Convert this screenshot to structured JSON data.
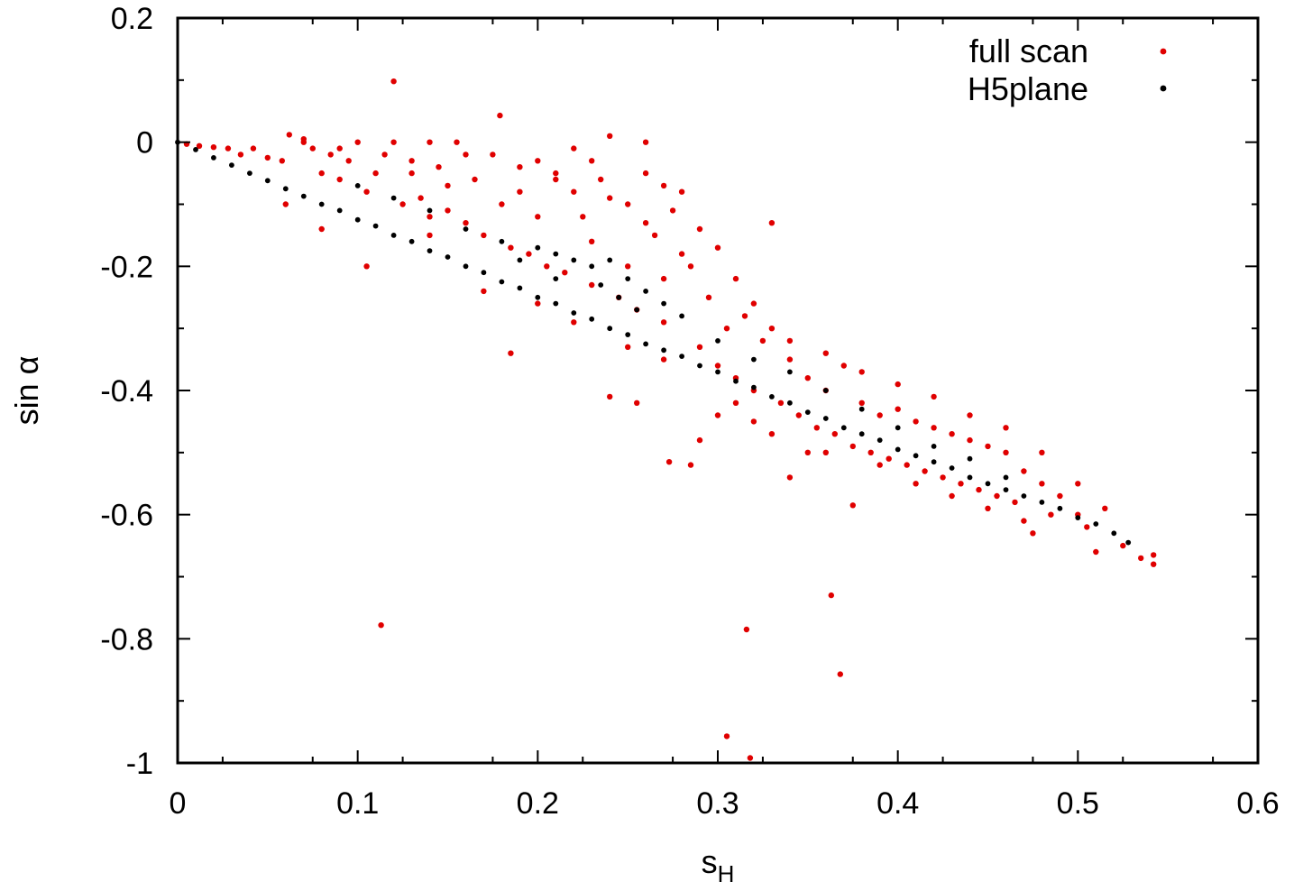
{
  "chart_data": {
    "type": "scatter",
    "title": "",
    "xlabel": "s",
    "xlabel_sub": "H",
    "ylabel": "sin α",
    "xlim": [
      0,
      0.6
    ],
    "ylim": [
      -1,
      0.2
    ],
    "x_ticks": [
      {
        "value": 0,
        "label": "0"
      },
      {
        "value": 0.1,
        "label": "0.1"
      },
      {
        "value": 0.2,
        "label": "0.2"
      },
      {
        "value": 0.3,
        "label": "0.3"
      },
      {
        "value": 0.4,
        "label": "0.4"
      },
      {
        "value": 0.5,
        "label": "0.5"
      },
      {
        "value": 0.6,
        "label": "0.6"
      }
    ],
    "y_ticks": [
      {
        "value": 0.2,
        "label": "0.2"
      },
      {
        "value": 0,
        "label": "0"
      },
      {
        "value": -0.2,
        "label": "-0.2"
      },
      {
        "value": -0.4,
        "label": "-0.4"
      },
      {
        "value": -0.6,
        "label": "-0.6"
      },
      {
        "value": -0.8,
        "label": "-0.8"
      },
      {
        "value": -1,
        "label": "-1"
      }
    ],
    "grid": false,
    "legend_position": "top-right",
    "series": [
      {
        "name": "full scan",
        "color": "#e00000",
        "points": [
          [
            0.005,
            -0.003
          ],
          [
            0.012,
            -0.006
          ],
          [
            0.02,
            -0.008
          ],
          [
            0.028,
            -0.01
          ],
          [
            0.035,
            -0.02
          ],
          [
            0.042,
            -0.01
          ],
          [
            0.05,
            -0.025
          ],
          [
            0.058,
            -0.03
          ],
          [
            0.062,
            0.012
          ],
          [
            0.07,
            0.005
          ],
          [
            0.075,
            -0.01
          ],
          [
            0.08,
            -0.05
          ],
          [
            0.085,
            -0.02
          ],
          [
            0.09,
            -0.06
          ],
          [
            0.095,
            -0.03
          ],
          [
            0.1,
            0.0
          ],
          [
            0.105,
            -0.08
          ],
          [
            0.11,
            -0.05
          ],
          [
            0.115,
            -0.02
          ],
          [
            0.12,
            0.098
          ],
          [
            0.125,
            -0.1
          ],
          [
            0.13,
            -0.03
          ],
          [
            0.135,
            -0.09
          ],
          [
            0.14,
            -0.12
          ],
          [
            0.145,
            -0.04
          ],
          [
            0.15,
            -0.11
          ],
          [
            0.155,
            0.0
          ],
          [
            0.16,
            -0.13
          ],
          [
            0.165,
            -0.06
          ],
          [
            0.17,
            -0.15
          ],
          [
            0.175,
            -0.02
          ],
          [
            0.179,
            0.043
          ],
          [
            0.185,
            -0.17
          ],
          [
            0.19,
            -0.08
          ],
          [
            0.195,
            -0.18
          ],
          [
            0.2,
            -0.03
          ],
          [
            0.205,
            -0.2
          ],
          [
            0.21,
            -0.05
          ],
          [
            0.215,
            -0.21
          ],
          [
            0.22,
            -0.01
          ],
          [
            0.225,
            -0.12
          ],
          [
            0.23,
            -0.23
          ],
          [
            0.235,
            -0.06
          ],
          [
            0.24,
            0.01
          ],
          [
            0.245,
            -0.25
          ],
          [
            0.25,
            -0.1
          ],
          [
            0.255,
            -0.27
          ],
          [
            0.26,
            -0.05
          ],
          [
            0.265,
            -0.15
          ],
          [
            0.27,
            -0.29
          ],
          [
            0.275,
            -0.11
          ],
          [
            0.28,
            -0.08
          ],
          [
            0.285,
            -0.2
          ],
          [
            0.29,
            -0.33
          ],
          [
            0.295,
            -0.25
          ],
          [
            0.3,
            -0.36
          ],
          [
            0.305,
            -0.3
          ],
          [
            0.31,
            -0.38
          ],
          [
            0.315,
            -0.28
          ],
          [
            0.32,
            -0.4
          ],
          [
            0.325,
            -0.32
          ],
          [
            0.33,
            -0.13
          ],
          [
            0.335,
            -0.42
          ],
          [
            0.34,
            -0.35
          ],
          [
            0.345,
            -0.44
          ],
          [
            0.35,
            -0.38
          ],
          [
            0.355,
            -0.46
          ],
          [
            0.36,
            -0.4
          ],
          [
            0.365,
            -0.47
          ],
          [
            0.37,
            -0.36
          ],
          [
            0.375,
            -0.49
          ],
          [
            0.38,
            -0.42
          ],
          [
            0.385,
            -0.5
          ],
          [
            0.39,
            -0.44
          ],
          [
            0.395,
            -0.51
          ],
          [
            0.4,
            -0.43
          ],
          [
            0.405,
            -0.52
          ],
          [
            0.41,
            -0.45
          ],
          [
            0.415,
            -0.53
          ],
          [
            0.42,
            -0.46
          ],
          [
            0.425,
            -0.54
          ],
          [
            0.43,
            -0.47
          ],
          [
            0.435,
            -0.55
          ],
          [
            0.44,
            -0.48
          ],
          [
            0.445,
            -0.56
          ],
          [
            0.45,
            -0.49
          ],
          [
            0.455,
            -0.57
          ],
          [
            0.46,
            -0.5
          ],
          [
            0.465,
            -0.58
          ],
          [
            0.47,
            -0.53
          ],
          [
            0.475,
            -0.63
          ],
          [
            0.48,
            -0.55
          ],
          [
            0.485,
            -0.6
          ],
          [
            0.49,
            -0.57
          ],
          [
            0.5,
            -0.6
          ],
          [
            0.505,
            -0.62
          ],
          [
            0.51,
            -0.66
          ],
          [
            0.515,
            -0.59
          ],
          [
            0.525,
            -0.65
          ],
          [
            0.535,
            -0.67
          ],
          [
            0.542,
            -0.68
          ],
          [
            0.542,
            -0.665
          ],
          [
            0.113,
            -0.778
          ],
          [
            0.316,
            -0.785
          ],
          [
            0.363,
            -0.73
          ],
          [
            0.368,
            -0.857
          ],
          [
            0.305,
            -0.957
          ],
          [
            0.318,
            -0.992
          ],
          [
            0.105,
            -0.2
          ],
          [
            0.185,
            -0.34
          ],
          [
            0.24,
            -0.41
          ],
          [
            0.255,
            -0.42
          ],
          [
            0.273,
            -0.515
          ],
          [
            0.285,
            -0.52
          ],
          [
            0.29,
            -0.48
          ],
          [
            0.34,
            -0.54
          ],
          [
            0.375,
            -0.585
          ],
          [
            0.3,
            -0.44
          ],
          [
            0.32,
            -0.45
          ],
          [
            0.35,
            -0.5
          ],
          [
            0.33,
            -0.47
          ],
          [
            0.08,
            -0.14
          ],
          [
            0.06,
            -0.1
          ],
          [
            0.14,
            -0.15
          ],
          [
            0.17,
            -0.24
          ],
          [
            0.2,
            -0.26
          ],
          [
            0.22,
            -0.29
          ],
          [
            0.31,
            -0.42
          ],
          [
            0.27,
            -0.35
          ],
          [
            0.25,
            -0.33
          ],
          [
            0.36,
            -0.5
          ],
          [
            0.39,
            -0.52
          ],
          [
            0.41,
            -0.55
          ],
          [
            0.43,
            -0.57
          ],
          [
            0.45,
            -0.59
          ],
          [
            0.47,
            -0.61
          ],
          [
            0.26,
            -0.0
          ],
          [
            0.27,
            -0.07
          ],
          [
            0.22,
            -0.08
          ],
          [
            0.23,
            -0.03
          ],
          [
            0.29,
            -0.14
          ],
          [
            0.3,
            -0.17
          ],
          [
            0.31,
            -0.22
          ],
          [
            0.28,
            -0.18
          ],
          [
            0.26,
            -0.13
          ],
          [
            0.24,
            -0.09
          ],
          [
            0.21,
            -0.06
          ],
          [
            0.19,
            -0.04
          ],
          [
            0.16,
            -0.02
          ],
          [
            0.14,
            -0.0
          ],
          [
            0.12,
            0.0
          ],
          [
            0.09,
            -0.01
          ],
          [
            0.07,
            0.0
          ],
          [
            0.13,
            -0.05
          ],
          [
            0.15,
            -0.07
          ],
          [
            0.18,
            -0.1
          ],
          [
            0.2,
            -0.12
          ],
          [
            0.23,
            -0.16
          ],
          [
            0.25,
            -0.2
          ],
          [
            0.27,
            -0.22
          ],
          [
            0.32,
            -0.26
          ],
          [
            0.33,
            -0.3
          ],
          [
            0.34,
            -0.32
          ],
          [
            0.36,
            -0.34
          ],
          [
            0.38,
            -0.37
          ],
          [
            0.4,
            -0.39
          ],
          [
            0.42,
            -0.41
          ],
          [
            0.44,
            -0.44
          ],
          [
            0.46,
            -0.46
          ],
          [
            0.48,
            -0.5
          ],
          [
            0.5,
            -0.55
          ]
        ]
      },
      {
        "name": "H5plane",
        "color": "#000000",
        "points": [
          [
            0.0,
            0.0
          ],
          [
            0.01,
            -0.012
          ],
          [
            0.02,
            -0.025
          ],
          [
            0.03,
            -0.037
          ],
          [
            0.04,
            -0.05
          ],
          [
            0.05,
            -0.062
          ],
          [
            0.06,
            -0.075
          ],
          [
            0.07,
            -0.087
          ],
          [
            0.08,
            -0.1
          ],
          [
            0.09,
            -0.11
          ],
          [
            0.1,
            -0.125
          ],
          [
            0.11,
            -0.135
          ],
          [
            0.12,
            -0.15
          ],
          [
            0.13,
            -0.16
          ],
          [
            0.14,
            -0.175
          ],
          [
            0.15,
            -0.185
          ],
          [
            0.16,
            -0.2
          ],
          [
            0.17,
            -0.21
          ],
          [
            0.18,
            -0.225
          ],
          [
            0.19,
            -0.235
          ],
          [
            0.2,
            -0.25
          ],
          [
            0.21,
            -0.26
          ],
          [
            0.22,
            -0.275
          ],
          [
            0.23,
            -0.285
          ],
          [
            0.24,
            -0.3
          ],
          [
            0.25,
            -0.31
          ],
          [
            0.26,
            -0.325
          ],
          [
            0.27,
            -0.335
          ],
          [
            0.28,
            -0.345
          ],
          [
            0.29,
            -0.36
          ],
          [
            0.3,
            -0.37
          ],
          [
            0.31,
            -0.385
          ],
          [
            0.32,
            -0.395
          ],
          [
            0.33,
            -0.41
          ],
          [
            0.34,
            -0.42
          ],
          [
            0.35,
            -0.435
          ],
          [
            0.36,
            -0.445
          ],
          [
            0.37,
            -0.46
          ],
          [
            0.38,
            -0.47
          ],
          [
            0.39,
            -0.48
          ],
          [
            0.4,
            -0.495
          ],
          [
            0.41,
            -0.505
          ],
          [
            0.42,
            -0.515
          ],
          [
            0.43,
            -0.525
          ],
          [
            0.44,
            -0.54
          ],
          [
            0.45,
            -0.55
          ],
          [
            0.46,
            -0.56
          ],
          [
            0.47,
            -0.57
          ],
          [
            0.48,
            -0.58
          ],
          [
            0.49,
            -0.59
          ],
          [
            0.5,
            -0.605
          ],
          [
            0.51,
            -0.615
          ],
          [
            0.52,
            -0.63
          ],
          [
            0.528,
            -0.645
          ],
          [
            0.2,
            -0.17
          ],
          [
            0.21,
            -0.18
          ],
          [
            0.22,
            -0.19
          ],
          [
            0.23,
            -0.2
          ],
          [
            0.24,
            -0.19
          ],
          [
            0.25,
            -0.22
          ],
          [
            0.26,
            -0.24
          ],
          [
            0.27,
            -0.26
          ],
          [
            0.28,
            -0.28
          ],
          [
            0.235,
            -0.23
          ],
          [
            0.245,
            -0.25
          ],
          [
            0.255,
            -0.27
          ],
          [
            0.18,
            -0.16
          ],
          [
            0.19,
            -0.19
          ],
          [
            0.21,
            -0.22
          ],
          [
            0.16,
            -0.14
          ],
          [
            0.14,
            -0.11
          ],
          [
            0.12,
            -0.09
          ],
          [
            0.1,
            -0.07
          ],
          [
            0.3,
            -0.32
          ],
          [
            0.32,
            -0.35
          ],
          [
            0.34,
            -0.37
          ],
          [
            0.36,
            -0.4
          ],
          [
            0.38,
            -0.43
          ],
          [
            0.4,
            -0.46
          ],
          [
            0.42,
            -0.49
          ],
          [
            0.44,
            -0.51
          ],
          [
            0.46,
            -0.54
          ]
        ]
      }
    ]
  }
}
